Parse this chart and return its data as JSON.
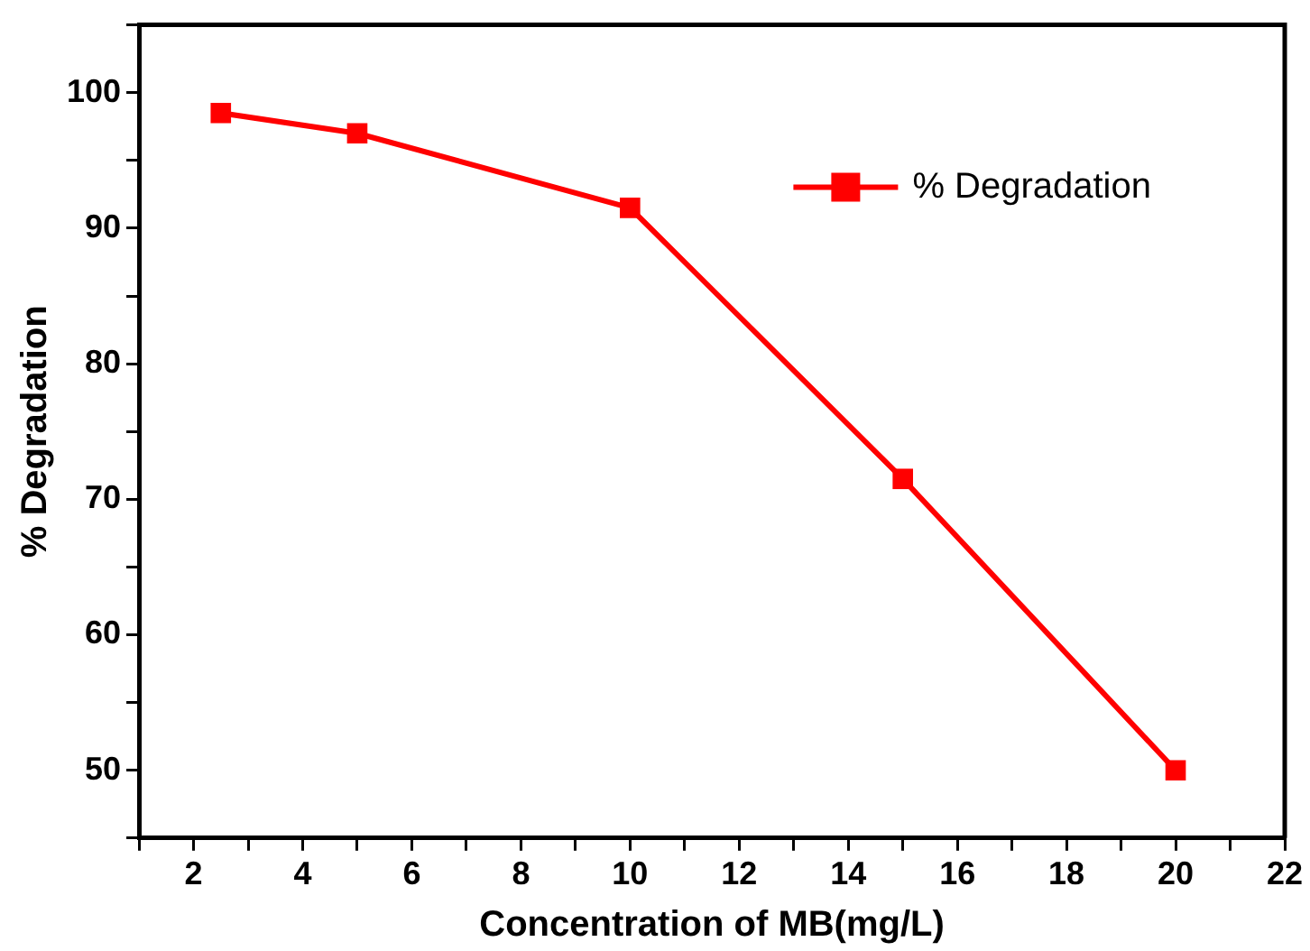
{
  "chart_data": {
    "type": "line",
    "xlabel": "Concentration of MB(mg/L)",
    "ylabel": "% Degradation",
    "x": [
      2.5,
      5,
      10,
      15,
      20
    ],
    "series": [
      {
        "name": "% Degradation",
        "color": "#ff0000",
        "values": [
          98.5,
          97,
          91.5,
          71.5,
          50
        ]
      }
    ],
    "xlim": [
      1,
      22
    ],
    "xticks": [
      {
        "value": 1,
        "label": null
      },
      2,
      {
        "value": 3,
        "label": null
      },
      4,
      {
        "value": 5,
        "label": null
      },
      6,
      {
        "value": 7,
        "label": null
      },
      8,
      {
        "value": 9,
        "label": null
      },
      10,
      {
        "value": 11,
        "label": null
      },
      12,
      {
        "value": 13,
        "label": null
      },
      14,
      {
        "value": 15,
        "label": null
      },
      16,
      {
        "value": 17,
        "label": null
      },
      18,
      {
        "value": 19,
        "label": null
      },
      20,
      {
        "value": 21,
        "label": null
      },
      22
    ],
    "ylim": [
      45,
      105
    ],
    "yticks": [
      {
        "value": 45,
        "label": null
      },
      50,
      {
        "value": 55,
        "label": null
      },
      60,
      {
        "value": 65,
        "label": null
      },
      70,
      {
        "value": 75,
        "label": null
      },
      80,
      {
        "value": 85,
        "label": null
      },
      90,
      {
        "value": 95,
        "label": null
      },
      100,
      {
        "value": 105,
        "label": null
      }
    ],
    "grid": false,
    "legend": "top right",
    "marker": "square",
    "line_style": "solid"
  }
}
